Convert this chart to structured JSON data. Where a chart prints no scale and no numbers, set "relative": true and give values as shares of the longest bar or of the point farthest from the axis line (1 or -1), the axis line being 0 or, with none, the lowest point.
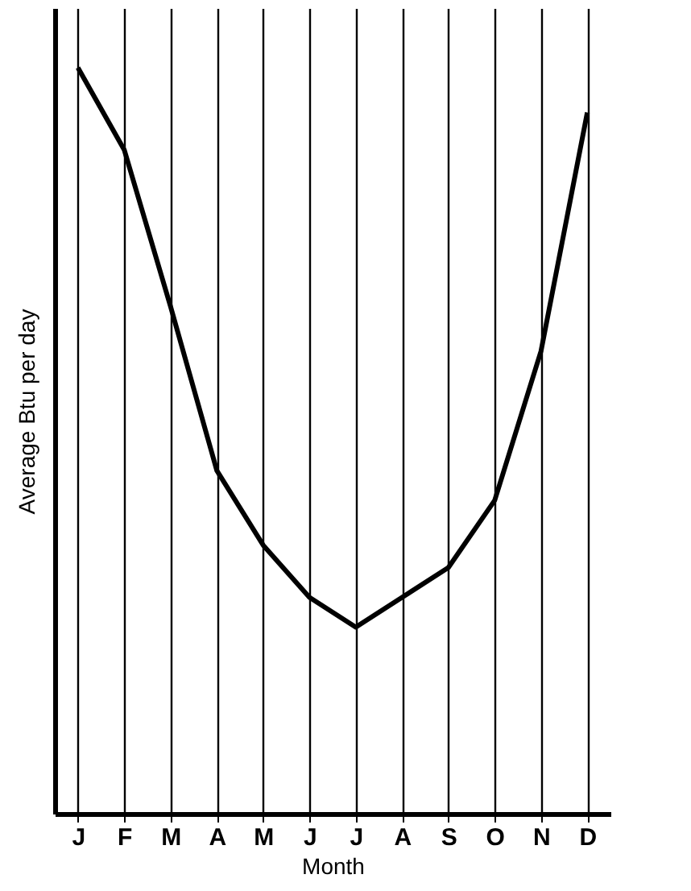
{
  "chart_data": {
    "type": "line",
    "xlabel": "Month",
    "ylabel": "Average Btu per day",
    "categories": [
      "J",
      "F",
      "M",
      "A",
      "M",
      "J",
      "J",
      "A",
      "S",
      "O",
      "N",
      "D"
    ],
    "values": [
      1,
      0.89,
      0.68,
      0.46,
      0.36,
      0.29,
      0.25,
      0.29,
      0.33,
      0.42,
      0.62,
      0.94
    ],
    "color": "#000000",
    "relative": true,
    "grid": "x",
    "marker": "none",
    "line_style": "solid"
  }
}
